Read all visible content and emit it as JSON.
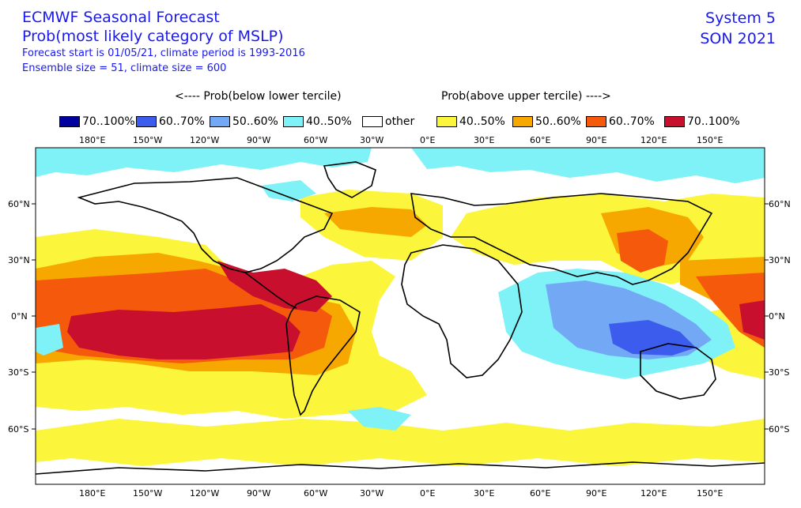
{
  "header": {
    "title": "ECMWF Seasonal Forecast",
    "subtitle": "Prob(most likely category of MSLP)",
    "line3": "Forecast start is 01/05/21, climate period is 1993-2016",
    "line4": "Ensemble size = 51, climate size = 600",
    "system": "System 5",
    "season": "SON 2021"
  },
  "category_headers": {
    "below": "<---- Prob(below lower tercile)",
    "above": "Prob(above upper tercile) ---->"
  },
  "legend": [
    {
      "label": "70..100%",
      "color": "#00009e"
    },
    {
      "label": "60..70%",
      "color": "#3c5ced"
    },
    {
      "label": "50..60%",
      "color": "#73a8f5"
    },
    {
      "label": "40..50%",
      "color": "#7ff2f7"
    },
    {
      "label": "other",
      "color": "#ffffff"
    },
    {
      "label": "40..50%",
      "color": "#fbf53b"
    },
    {
      "label": "50..60%",
      "color": "#f7a800"
    },
    {
      "label": "60..70%",
      "color": "#f55a0c"
    },
    {
      "label": "70..100%",
      "color": "#c8102e"
    }
  ],
  "axes": {
    "lon_labels": [
      "180°E",
      "150°W",
      "120°W",
      "90°W",
      "60°W",
      "30°W",
      "0°E",
      "30°E",
      "60°E",
      "90°E",
      "120°E",
      "150°E"
    ],
    "lat_labels": [
      "60°N",
      "30°N",
      "0°N",
      "30°S",
      "60°S"
    ]
  }
}
